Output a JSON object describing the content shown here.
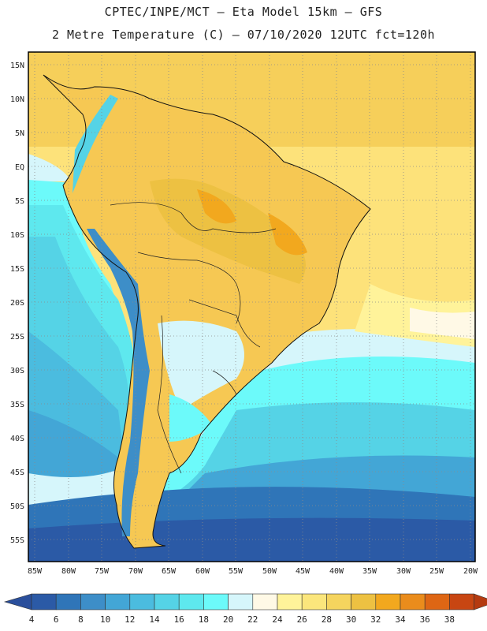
{
  "header": {
    "line1": "CPTEC/INPE/MCT –  Eta Model 15km – GFS",
    "line2": "2 Metre Temperature (C) – 07/10/2020 12UTC fct=120h"
  },
  "map": {
    "lat_labels": [
      "15N",
      "10N",
      "5N",
      "EQ",
      "5S",
      "10S",
      "15S",
      "20S",
      "25S",
      "30S",
      "35S",
      "40S",
      "45S",
      "50S",
      "55S"
    ],
    "lon_labels": [
      "85W",
      "80W",
      "75W",
      "70W",
      "65W",
      "60W",
      "55W",
      "50W",
      "45W",
      "40W",
      "35W",
      "30W",
      "25W",
      "20W"
    ]
  },
  "colorbar": {
    "labels": [
      "4",
      "6",
      "8",
      "10",
      "12",
      "14",
      "16",
      "18",
      "20",
      "22",
      "24",
      "26",
      "28",
      "30",
      "32",
      "34",
      "36",
      "38"
    ],
    "colors": [
      "#2b5aa6",
      "#2f75b8",
      "#3d8ec8",
      "#43a6d6",
      "#4bbcdf",
      "#55d3e6",
      "#5ee8ee",
      "#6cfafa",
      "#d6f6fb",
      "#fff9e6",
      "#fff39a",
      "#fbe67c",
      "#f5d45e",
      "#edc142",
      "#f2a81e",
      "#ea8c1c",
      "#de6614",
      "#c84612"
    ],
    "under_color": "#2a4f9c",
    "over_color": "#b53a10"
  }
}
